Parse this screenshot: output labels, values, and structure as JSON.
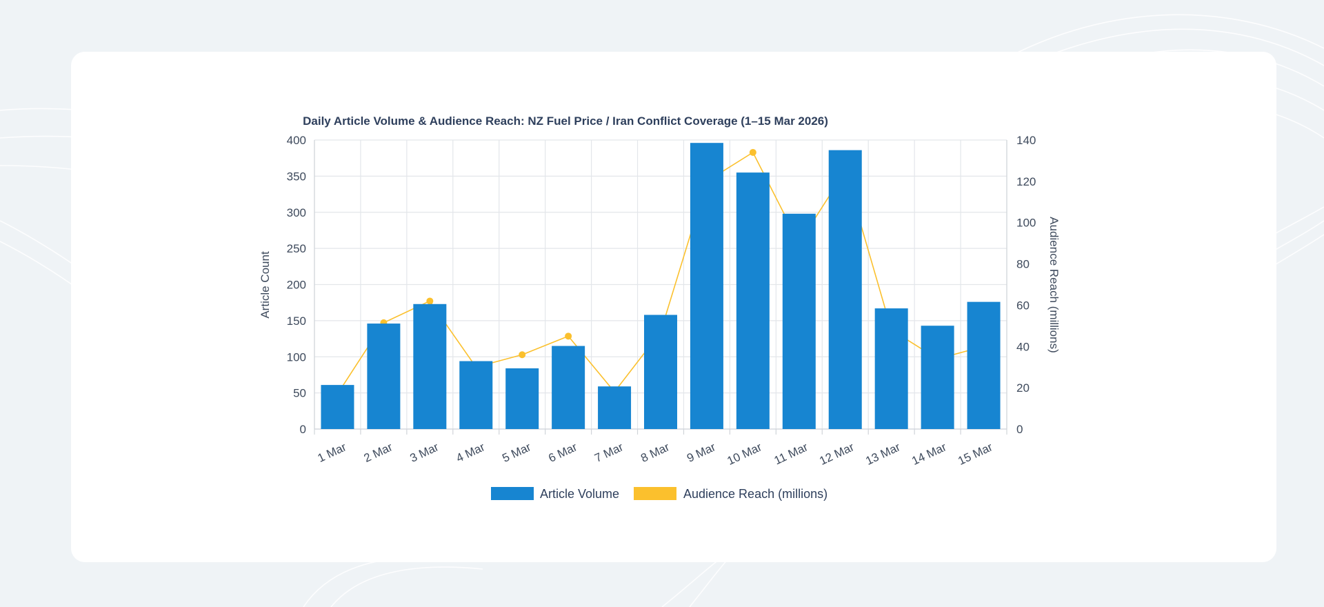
{
  "colors": {
    "background": "#eff3f6",
    "card": "#ffffff",
    "bar": "#1785d1",
    "line": "#fbc02d",
    "text": "#3e4a5c",
    "title": "#2e3f5c"
  },
  "chart_data": {
    "type": "bar",
    "title": "Daily Article Volume & Audience Reach: NZ Fuel Price / Iran Conflict Coverage (1–15 Mar 2026)",
    "categories": [
      "1 Mar",
      "2 Mar",
      "3 Mar",
      "4 Mar",
      "5 Mar",
      "6 Mar",
      "7 Mar",
      "8 Mar",
      "9 Mar",
      "10 Mar",
      "11 Mar",
      "12 Mar",
      "13 Mar",
      "14 Mar",
      "15 Mar"
    ],
    "series": [
      {
        "name": "Article Volume",
        "type": "bar",
        "axis": "left",
        "values": [
          61,
          146,
          173,
          94,
          84,
          115,
          59,
          158,
          396,
          355,
          298,
          386,
          167,
          143,
          176
        ]
      },
      {
        "name": "Audience Reach (millions)",
        "type": "line",
        "axis": "right",
        "values": [
          17,
          51.5,
          62,
          30,
          36,
          45,
          18,
          47,
          120,
          134,
          90,
          125,
          48,
          34,
          40
        ]
      }
    ],
    "ylabel": "Article Count",
    "ylim": [
      0,
      400
    ],
    "yticks": [
      0,
      50,
      100,
      150,
      200,
      250,
      300,
      350,
      400
    ],
    "y2label": "Audience Reach (millions)",
    "y2lim": [
      0,
      140
    ],
    "y2ticks": [
      0,
      20,
      40,
      60,
      80,
      100,
      120,
      140
    ],
    "grid": true,
    "legend": "bottom"
  }
}
